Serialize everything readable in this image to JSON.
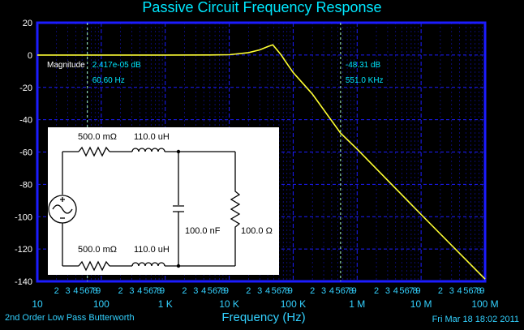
{
  "chart_data": {
    "type": "line",
    "title": "Passive Circuit Frequency Response",
    "xlabel": "Frequency (Hz)",
    "ylabel": "",
    "x_scale": "log",
    "xlim": [
      10,
      100000000
    ],
    "ylim": [
      -140,
      20
    ],
    "y_ticks": [
      20,
      0,
      -20,
      -40,
      -60,
      -80,
      -100,
      -120,
      -140
    ],
    "x_decade_ticks": [
      {
        "value": 10,
        "label": "10"
      },
      {
        "value": 100,
        "label": "100"
      },
      {
        "value": 1000,
        "label": "1 K"
      },
      {
        "value": 10000,
        "label": "10 K"
      },
      {
        "value": 100000,
        "label": "100 K"
      },
      {
        "value": 1000000,
        "label": "1 M"
      },
      {
        "value": 10000000,
        "label": "10 M"
      },
      {
        "value": 100000000,
        "label": "100 M"
      }
    ],
    "x_minor_labels": [
      "2",
      "3",
      "4",
      "5",
      "6",
      "7",
      "8",
      "9"
    ],
    "grid": true,
    "series": [
      {
        "name": "Magnitude",
        "x": [
          10,
          100,
          1000,
          5000,
          10000,
          20000,
          30000,
          40000,
          48000,
          55000,
          65000,
          80000,
          100000,
          200000,
          551000,
          1000000,
          10000000,
          100000000
        ],
        "y": [
          0,
          0,
          0,
          0.02,
          0.2,
          1.5,
          3.2,
          5.2,
          6.3,
          3.5,
          0,
          -5.3,
          -10.8,
          -24.2,
          -48.31,
          -58.2,
          -98.6,
          -138.6
        ]
      }
    ],
    "cursors": [
      {
        "x": 60.6,
        "label": "Magnitude",
        "value_text": "2.417e-05 dB",
        "freq_text": "60.60 Hz"
      },
      {
        "x": 551000,
        "label": "",
        "value_text": "-48.31 dB",
        "freq_text": "551.0 KHz"
      }
    ]
  },
  "footer": {
    "left_caption": "2nd Order Low Pass Butterworth",
    "timestamp": "Fri Mar 18 18:02 2011"
  },
  "schematic": {
    "r_top": "500.0 mΩ",
    "l_top": "110.0 uH",
    "r_bottom": "500.0 mΩ",
    "l_bottom": "110.0 uH",
    "capacitor": "100.0 nF",
    "load": "100.0 Ω"
  },
  "colors": {
    "background": "#000000",
    "frame": "#1c1cff",
    "title": "#00e8ff",
    "trace": "#ffff33",
    "cursor": "#aaffcc",
    "grid": "#1c1cff",
    "tick_text": "#ffffff",
    "axis_label": "#33d1ff"
  }
}
